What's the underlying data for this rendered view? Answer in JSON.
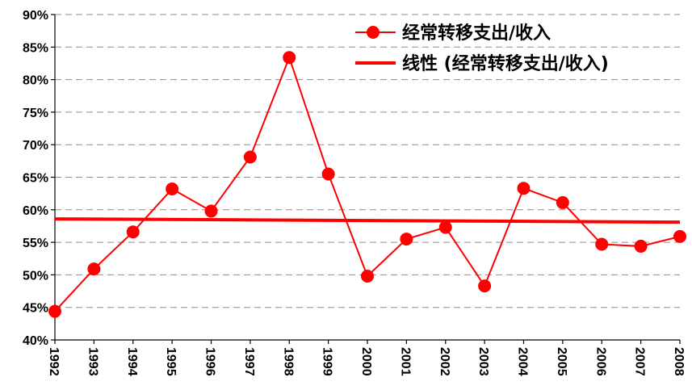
{
  "chart_data": {
    "type": "line",
    "title": "",
    "xlabel": "",
    "ylabel": "",
    "categories": [
      "1992",
      "1993",
      "1994",
      "1995",
      "1996",
      "1997",
      "1998",
      "1999",
      "2000",
      "2001",
      "2002",
      "2003",
      "2004",
      "2005",
      "2006",
      "2007",
      "2008"
    ],
    "series": [
      {
        "name": "经常转移支出/收入",
        "color": "#ff0000",
        "marker": "circle",
        "values": [
          0.444,
          0.509,
          0.566,
          0.632,
          0.598,
          0.681,
          0.834,
          0.655,
          0.498,
          0.555,
          0.573,
          0.483,
          0.633,
          0.611,
          0.547,
          0.544,
          0.559
        ]
      }
    ],
    "trendline": {
      "name": "线性 (经常转移支出/收入)",
      "color": "#ff0000",
      "start": 0.586,
      "end": 0.581
    },
    "yaxis": {
      "min": 0.4,
      "max": 0.9,
      "step": 0.05,
      "tick_labels": [
        "40%",
        "45%",
        "50%",
        "55%",
        "60%",
        "65%",
        "70%",
        "75%",
        "80%",
        "85%",
        "90%"
      ]
    },
    "grid": true,
    "legend_position": "top-right"
  }
}
